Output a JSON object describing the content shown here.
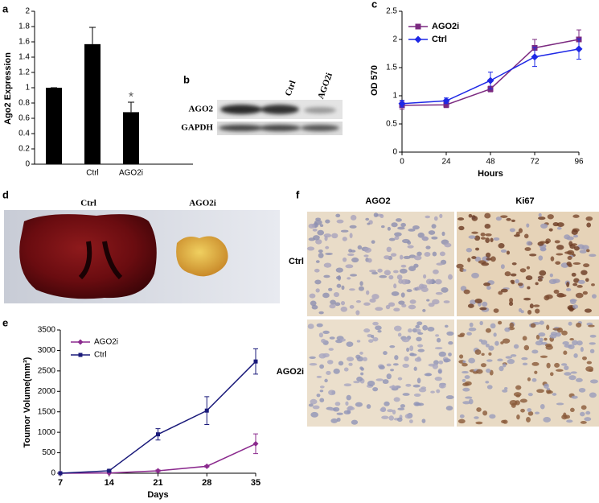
{
  "chart_data": [
    {
      "type": "bar",
      "panel": "a",
      "ylabel": "Ago2 Expression",
      "categories": [
        null,
        "Ctrl",
        "AGO2i"
      ],
      "values": [
        1,
        1.57,
        0.68
      ],
      "errors": [
        0,
        0.22,
        0.13
      ],
      "color": "#000000",
      "annotation": "*",
      "ylim": [
        0,
        2
      ],
      "yticks": [
        0,
        0.2,
        0.4,
        0.6,
        0.8,
        1,
        1.2,
        1.4,
        1.6,
        1.8,
        2
      ]
    },
    {
      "type": "line",
      "panel": "c",
      "xlabel": "Hours",
      "ylabel": "OD 570",
      "x": [
        0,
        24,
        48,
        72,
        96
      ],
      "xlim": [
        0,
        96
      ],
      "xticks": [
        0,
        24,
        48,
        72,
        96
      ],
      "ylim": [
        0,
        2.5
      ],
      "yticks": [
        0,
        0.5,
        1,
        1.5,
        2,
        2.5
      ],
      "legend": "top-left",
      "series": [
        {
          "name": "AGO2i",
          "color": "#7b2a80",
          "marker": "square",
          "values": [
            0.83,
            0.84,
            1.12,
            1.85,
            2.0
          ],
          "errors": [
            0.07,
            0.05,
            0.05,
            0.15,
            0.17
          ]
        },
        {
          "name": "Ctrl",
          "color": "#1e28e6",
          "marker": "diamond",
          "values": [
            0.86,
            0.91,
            1.27,
            1.69,
            1.83
          ],
          "errors": [
            0.06,
            0.05,
            0.15,
            0.17,
            0.18
          ]
        }
      ]
    },
    {
      "type": "line",
      "panel": "e",
      "xlabel": "Days",
      "ylabel": "Toumor Volume(mm³)",
      "x": [
        7,
        14,
        21,
        28,
        35
      ],
      "xlim": [
        7,
        35
      ],
      "xticks": [
        7,
        14,
        21,
        28,
        35
      ],
      "ylim": [
        0,
        3500
      ],
      "yticks": [
        0,
        500,
        1000,
        1500,
        2000,
        2500,
        3000,
        3500
      ],
      "legend": "top-left",
      "series": [
        {
          "name": "AGO2i",
          "color": "#8b2a8e",
          "marker": "diamond",
          "values": [
            0,
            5,
            60,
            170,
            720
          ],
          "errors": [
            0,
            0,
            20,
            20,
            240
          ]
        },
        {
          "name": "Ctrl",
          "color": "#1a1a7a",
          "marker": "square",
          "values": [
            0,
            60,
            950,
            1530,
            2730
          ],
          "errors": [
            0,
            20,
            140,
            340,
            310
          ]
        }
      ]
    }
  ],
  "blot": {
    "panel": "b",
    "lanes": [
      "Ctrl",
      "AGO2i"
    ],
    "rows": [
      "AGO2",
      "GAPDH"
    ]
  },
  "tumor": {
    "panel": "d",
    "labels": [
      "Ctrl",
      "AGO2i"
    ]
  },
  "ihc": {
    "panel": "f",
    "columns": [
      "AGO2",
      "Ki67"
    ],
    "rows": [
      "Ctrl",
      "AGO2i"
    ]
  }
}
